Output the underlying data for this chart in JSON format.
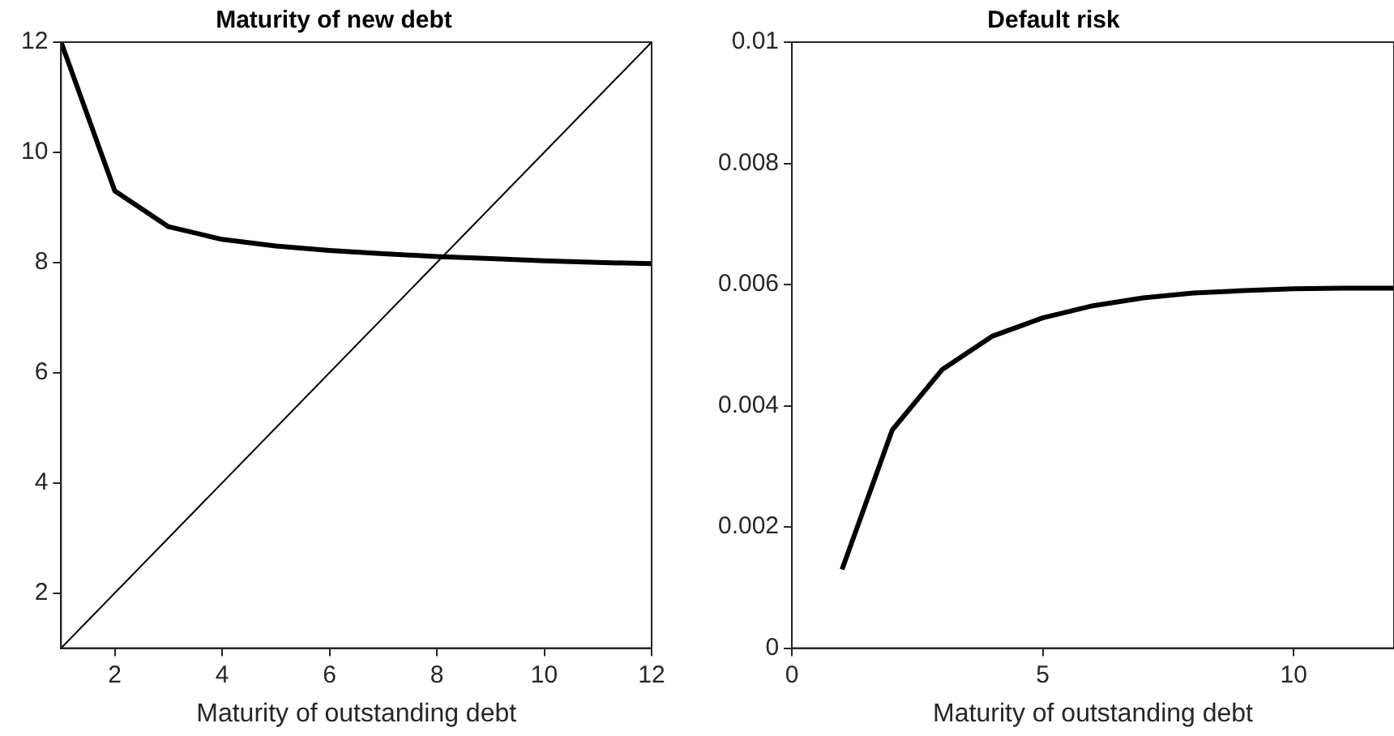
{
  "chart_data": [
    {
      "type": "line",
      "title": "Maturity of new debt",
      "xlabel": "Maturity of outstanding debt",
      "x": [
        1,
        2,
        3,
        4,
        5,
        6,
        7,
        8,
        9,
        10,
        11,
        12
      ],
      "xlim": [
        1,
        12
      ],
      "xticks": [
        2,
        4,
        6,
        8,
        10,
        12
      ],
      "ylim": [
        1,
        12
      ],
      "yticks": [
        2,
        4,
        6,
        8,
        10,
        12
      ],
      "grid": false,
      "marker": "none",
      "series": [
        {
          "color": "#000000",
          "values": [
            12,
            9.3,
            8.65,
            8.42,
            8.3,
            8.22,
            8.16,
            8.11,
            8.07,
            8.03,
            8.0,
            7.98
          ]
        },
        {
          "color": "#000000",
          "x": [
            1,
            12
          ],
          "values": [
            1,
            12
          ]
        }
      ]
    },
    {
      "type": "line",
      "title": "Default risk",
      "xlabel": "Maturity of outstanding debt",
      "x": [
        1,
        2,
        3,
        4,
        5,
        6,
        7,
        8,
        9,
        10,
        11,
        12
      ],
      "xlim": [
        0,
        12
      ],
      "xticks": [
        0,
        5,
        10
      ],
      "ylim": [
        0,
        0.01
      ],
      "yticks": [
        0,
        0.002,
        0.004,
        0.006,
        0.008,
        0.01
      ],
      "grid": false,
      "marker": "none",
      "series": [
        {
          "color": "#000000",
          "values": [
            0.0013,
            0.0036,
            0.0046,
            0.00515,
            0.00545,
            0.00565,
            0.00578,
            0.00586,
            0.0059,
            0.00593,
            0.00594,
            0.00594
          ]
        }
      ]
    }
  ]
}
